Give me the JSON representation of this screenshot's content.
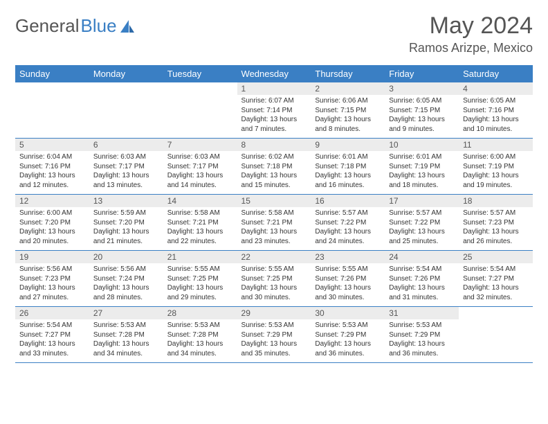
{
  "brand": {
    "word1": "General",
    "word2": "Blue"
  },
  "title": "May 2024",
  "location": "Ramos Arizpe, Mexico",
  "colors": {
    "header_bg": "#3a7fc4",
    "header_text": "#ffffff",
    "daynum_bg": "#ececec",
    "row_border": "#3a7fc4",
    "text": "#333333",
    "title_text": "#555555"
  },
  "weekdays": [
    "Sunday",
    "Monday",
    "Tuesday",
    "Wednesday",
    "Thursday",
    "Friday",
    "Saturday"
  ],
  "weeks": [
    [
      {
        "n": "",
        "sr": "",
        "ss": "",
        "dl": ""
      },
      {
        "n": "",
        "sr": "",
        "ss": "",
        "dl": ""
      },
      {
        "n": "",
        "sr": "",
        "ss": "",
        "dl": ""
      },
      {
        "n": "1",
        "sr": "Sunrise: 6:07 AM",
        "ss": "Sunset: 7:14 PM",
        "dl": "Daylight: 13 hours and 7 minutes."
      },
      {
        "n": "2",
        "sr": "Sunrise: 6:06 AM",
        "ss": "Sunset: 7:15 PM",
        "dl": "Daylight: 13 hours and 8 minutes."
      },
      {
        "n": "3",
        "sr": "Sunrise: 6:05 AM",
        "ss": "Sunset: 7:15 PM",
        "dl": "Daylight: 13 hours and 9 minutes."
      },
      {
        "n": "4",
        "sr": "Sunrise: 6:05 AM",
        "ss": "Sunset: 7:16 PM",
        "dl": "Daylight: 13 hours and 10 minutes."
      }
    ],
    [
      {
        "n": "5",
        "sr": "Sunrise: 6:04 AM",
        "ss": "Sunset: 7:16 PM",
        "dl": "Daylight: 13 hours and 12 minutes."
      },
      {
        "n": "6",
        "sr": "Sunrise: 6:03 AM",
        "ss": "Sunset: 7:17 PM",
        "dl": "Daylight: 13 hours and 13 minutes."
      },
      {
        "n": "7",
        "sr": "Sunrise: 6:03 AM",
        "ss": "Sunset: 7:17 PM",
        "dl": "Daylight: 13 hours and 14 minutes."
      },
      {
        "n": "8",
        "sr": "Sunrise: 6:02 AM",
        "ss": "Sunset: 7:18 PM",
        "dl": "Daylight: 13 hours and 15 minutes."
      },
      {
        "n": "9",
        "sr": "Sunrise: 6:01 AM",
        "ss": "Sunset: 7:18 PM",
        "dl": "Daylight: 13 hours and 16 minutes."
      },
      {
        "n": "10",
        "sr": "Sunrise: 6:01 AM",
        "ss": "Sunset: 7:19 PM",
        "dl": "Daylight: 13 hours and 18 minutes."
      },
      {
        "n": "11",
        "sr": "Sunrise: 6:00 AM",
        "ss": "Sunset: 7:19 PM",
        "dl": "Daylight: 13 hours and 19 minutes."
      }
    ],
    [
      {
        "n": "12",
        "sr": "Sunrise: 6:00 AM",
        "ss": "Sunset: 7:20 PM",
        "dl": "Daylight: 13 hours and 20 minutes."
      },
      {
        "n": "13",
        "sr": "Sunrise: 5:59 AM",
        "ss": "Sunset: 7:20 PM",
        "dl": "Daylight: 13 hours and 21 minutes."
      },
      {
        "n": "14",
        "sr": "Sunrise: 5:58 AM",
        "ss": "Sunset: 7:21 PM",
        "dl": "Daylight: 13 hours and 22 minutes."
      },
      {
        "n": "15",
        "sr": "Sunrise: 5:58 AM",
        "ss": "Sunset: 7:21 PM",
        "dl": "Daylight: 13 hours and 23 minutes."
      },
      {
        "n": "16",
        "sr": "Sunrise: 5:57 AM",
        "ss": "Sunset: 7:22 PM",
        "dl": "Daylight: 13 hours and 24 minutes."
      },
      {
        "n": "17",
        "sr": "Sunrise: 5:57 AM",
        "ss": "Sunset: 7:22 PM",
        "dl": "Daylight: 13 hours and 25 minutes."
      },
      {
        "n": "18",
        "sr": "Sunrise: 5:57 AM",
        "ss": "Sunset: 7:23 PM",
        "dl": "Daylight: 13 hours and 26 minutes."
      }
    ],
    [
      {
        "n": "19",
        "sr": "Sunrise: 5:56 AM",
        "ss": "Sunset: 7:23 PM",
        "dl": "Daylight: 13 hours and 27 minutes."
      },
      {
        "n": "20",
        "sr": "Sunrise: 5:56 AM",
        "ss": "Sunset: 7:24 PM",
        "dl": "Daylight: 13 hours and 28 minutes."
      },
      {
        "n": "21",
        "sr": "Sunrise: 5:55 AM",
        "ss": "Sunset: 7:25 PM",
        "dl": "Daylight: 13 hours and 29 minutes."
      },
      {
        "n": "22",
        "sr": "Sunrise: 5:55 AM",
        "ss": "Sunset: 7:25 PM",
        "dl": "Daylight: 13 hours and 30 minutes."
      },
      {
        "n": "23",
        "sr": "Sunrise: 5:55 AM",
        "ss": "Sunset: 7:26 PM",
        "dl": "Daylight: 13 hours and 30 minutes."
      },
      {
        "n": "24",
        "sr": "Sunrise: 5:54 AM",
        "ss": "Sunset: 7:26 PM",
        "dl": "Daylight: 13 hours and 31 minutes."
      },
      {
        "n": "25",
        "sr": "Sunrise: 5:54 AM",
        "ss": "Sunset: 7:27 PM",
        "dl": "Daylight: 13 hours and 32 minutes."
      }
    ],
    [
      {
        "n": "26",
        "sr": "Sunrise: 5:54 AM",
        "ss": "Sunset: 7:27 PM",
        "dl": "Daylight: 13 hours and 33 minutes."
      },
      {
        "n": "27",
        "sr": "Sunrise: 5:53 AM",
        "ss": "Sunset: 7:28 PM",
        "dl": "Daylight: 13 hours and 34 minutes."
      },
      {
        "n": "28",
        "sr": "Sunrise: 5:53 AM",
        "ss": "Sunset: 7:28 PM",
        "dl": "Daylight: 13 hours and 34 minutes."
      },
      {
        "n": "29",
        "sr": "Sunrise: 5:53 AM",
        "ss": "Sunset: 7:29 PM",
        "dl": "Daylight: 13 hours and 35 minutes."
      },
      {
        "n": "30",
        "sr": "Sunrise: 5:53 AM",
        "ss": "Sunset: 7:29 PM",
        "dl": "Daylight: 13 hours and 36 minutes."
      },
      {
        "n": "31",
        "sr": "Sunrise: 5:53 AM",
        "ss": "Sunset: 7:29 PM",
        "dl": "Daylight: 13 hours and 36 minutes."
      },
      {
        "n": "",
        "sr": "",
        "ss": "",
        "dl": ""
      }
    ]
  ]
}
